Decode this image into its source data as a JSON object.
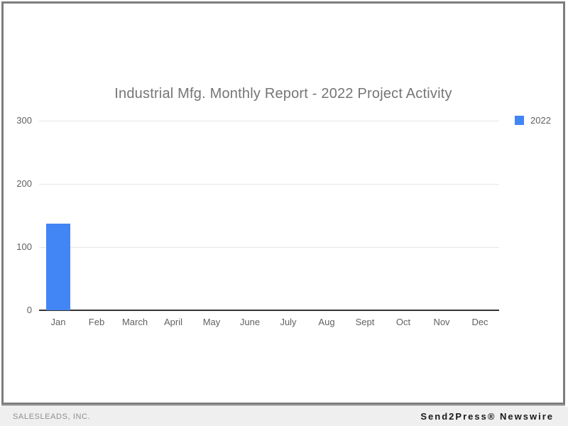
{
  "chart_data": {
    "type": "bar",
    "title": "Industrial Mfg. Monthly Report - 2022 Project Activity",
    "categories": [
      "Jan",
      "Feb",
      "March",
      "April",
      "May",
      "June",
      "July",
      "Aug",
      "Sept",
      "Oct",
      "Nov",
      "Dec"
    ],
    "series": [
      {
        "name": "2022",
        "color": "#4285f4",
        "values": [
          137,
          0,
          0,
          0,
          0,
          0,
          0,
          0,
          0,
          0,
          0,
          0
        ]
      }
    ],
    "xlabel": "",
    "ylabel": "",
    "ylim": [
      0,
      300
    ],
    "yticks": [
      0,
      100,
      200,
      300
    ],
    "grid": true,
    "legend": {
      "position": "top-right",
      "label": "2022",
      "swatch_color": "#4285f4"
    },
    "title_color": "#757575",
    "axis_label_color": "#616161",
    "gridline_color": "#e6e6e6",
    "axis_line_color": "#333333"
  },
  "footer": {
    "left": "SALESLEADS, INC.",
    "right": "Send2Press® Newswire"
  },
  "colors": {
    "bar_blue": "#4285f4",
    "frame_border": "#7d7d7d",
    "footer_background": "#efefef"
  }
}
